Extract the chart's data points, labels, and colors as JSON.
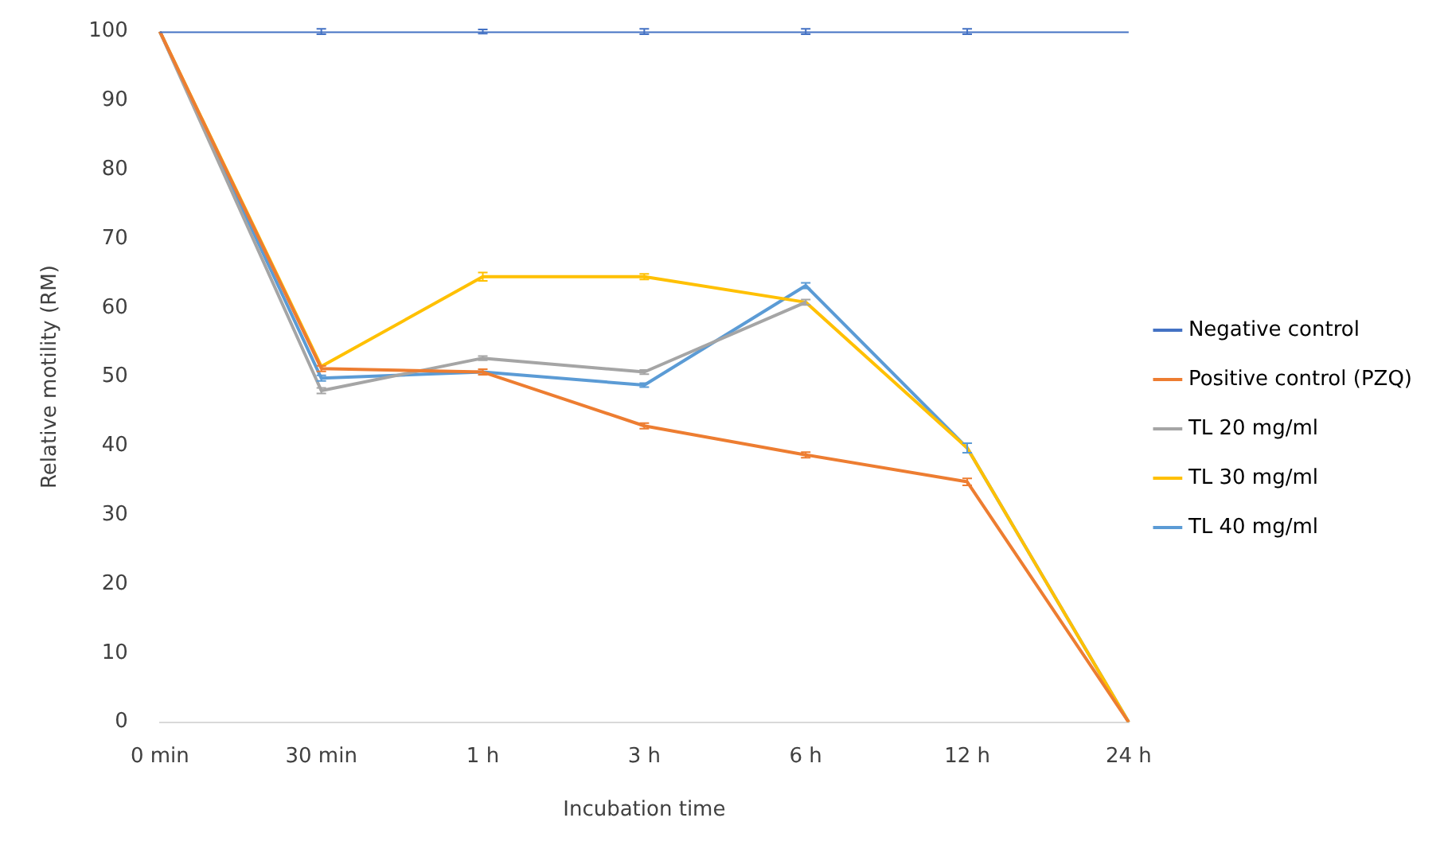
{
  "chart_data": {
    "type": "line",
    "xlabel": "Incubation time",
    "ylabel": "Relative motility (RM)",
    "categories": [
      "0 min",
      "30 min",
      "1 h",
      "3 h",
      "6 h",
      "12 h",
      "24 h"
    ],
    "series": [
      {
        "name": "Negative control",
        "color": "#4472c4",
        "values": [
          100,
          100,
          100,
          100,
          100,
          100,
          100
        ],
        "errors": [
          null,
          0.4,
          0.3,
          0.4,
          0.4,
          0.4,
          null
        ]
      },
      {
        "name": "Positive control (PZQ)",
        "color": "#ed7d31",
        "values": [
          100,
          51.2,
          50.7,
          42.9,
          38.7,
          34.8,
          0
        ],
        "errors": [
          null,
          0.4,
          0.4,
          0.4,
          0.4,
          0.5,
          null
        ]
      },
      {
        "name": "TL 20 mg/ml",
        "color": "#a5a5a5",
        "values": [
          100,
          48,
          52.7,
          50.7,
          60.8,
          null,
          null
        ],
        "errors": [
          null,
          0.4,
          0.3,
          0.3,
          0.4,
          null,
          null
        ]
      },
      {
        "name": "TL 30 mg/ml",
        "color": "#ffc000",
        "values": [
          100,
          51.5,
          64.5,
          64.5,
          60.8,
          39.7,
          0
        ],
        "errors": [
          null,
          null,
          0.6,
          0.4,
          null,
          0.7,
          null
        ]
      },
      {
        "name": "TL 40 mg/ml",
        "color": "#5b9bd5",
        "values": [
          100,
          49.8,
          50.7,
          48.8,
          63.2,
          39.7,
          0
        ],
        "errors": [
          null,
          0.4,
          null,
          0.3,
          0.4,
          0.7,
          null
        ]
      }
    ],
    "ylim": [
      0,
      100
    ],
    "yticks": [
      0,
      10,
      20,
      30,
      40,
      50,
      60,
      70,
      80,
      90,
      100
    ],
    "grid": false,
    "legend": "right",
    "marker": "none",
    "line_style": "solid"
  }
}
